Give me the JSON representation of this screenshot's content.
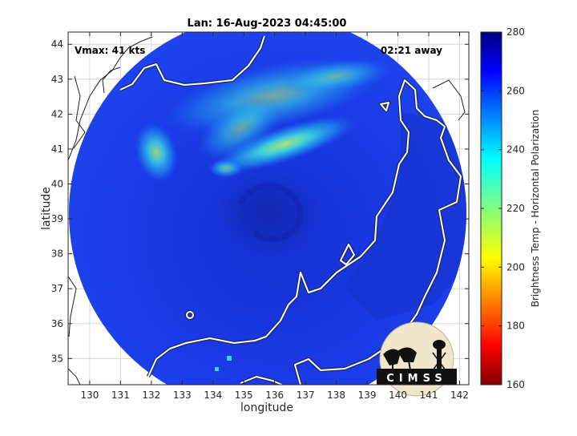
{
  "title": "Lan: 16-Aug-2023 04:45:00",
  "vmax_label": "Vmax: 41 kts",
  "away_label": "02:21 away",
  "xlabel": "longitude",
  "ylabel": "latitude",
  "colorbar_label": "Brightness Temp - Horizontal Polarization",
  "logo_text": "CIMSS",
  "chart_data": {
    "type": "heatmap",
    "title": "Lan: 16-Aug-2023 04:45:00",
    "xlabel": "longitude",
    "ylabel": "latitude",
    "xlim": [
      129.3,
      142.3
    ],
    "ylim": [
      34.25,
      44.35
    ],
    "x_ticks": [
      130,
      131,
      132,
      133,
      134,
      135,
      136,
      137,
      138,
      139,
      140,
      141,
      142
    ],
    "y_ticks": [
      35,
      36,
      37,
      38,
      39,
      40,
      41,
      42,
      43,
      44
    ],
    "grid": true,
    "colorbar": {
      "label": "Brightness Temp - Horizontal Polarization",
      "range": [
        160,
        280
      ],
      "ticks": [
        160,
        180,
        200,
        220,
        240,
        260,
        280
      ],
      "colormap": "jet"
    },
    "annotations": [
      "Vmax: 41 kts",
      "02:21 away"
    ],
    "storm_center": {
      "lon": 135.6,
      "lat": 39.4
    },
    "field_background_value": 262,
    "bright_bands": [
      {
        "lon": 136.6,
        "lat": 40.9,
        "value": 238
      },
      {
        "lon": 132.4,
        "lat": 40.8,
        "value": 243
      },
      {
        "lon": 138.2,
        "lat": 42.9,
        "value": 246
      }
    ]
  }
}
